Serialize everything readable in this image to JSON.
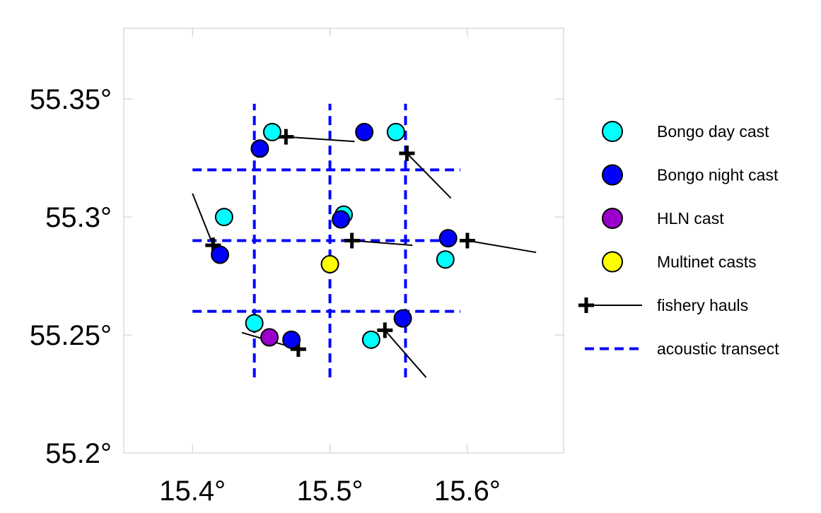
{
  "chart_data": {
    "type": "scatter",
    "title": "",
    "xlabel": "",
    "ylabel": "",
    "xlim": [
      15.35,
      15.67
    ],
    "ylim": [
      55.2,
      55.38
    ],
    "x_ticks": [
      {
        "value": 15.4,
        "label": "15.4°"
      },
      {
        "value": 15.5,
        "label": "15.5°"
      },
      {
        "value": 15.6,
        "label": "15.6°"
      }
    ],
    "y_ticks": [
      {
        "value": 55.2,
        "label": "55.2°"
      },
      {
        "value": 55.25,
        "label": "55.25°"
      },
      {
        "value": 55.3,
        "label": "55.3°"
      },
      {
        "value": 55.35,
        "label": "55.35°"
      }
    ],
    "grid": false,
    "legend_position": "right",
    "colors": {
      "bongo_day": "#00ffff",
      "bongo_night": "#0000ff",
      "hln": "#9900cc",
      "multinet": "#ffff00",
      "fishery": "#000000",
      "acoustic": "#0000ff"
    },
    "acoustic_transects": [
      {
        "x": [
          15.445,
          15.445
        ],
        "y": [
          55.232,
          55.348
        ]
      },
      {
        "x": [
          15.5,
          15.5
        ],
        "y": [
          55.232,
          55.348
        ]
      },
      {
        "x": [
          15.555,
          15.555
        ],
        "y": [
          55.232,
          55.348
        ]
      },
      {
        "x": [
          15.4,
          15.595
        ],
        "y": [
          55.32,
          55.32
        ]
      },
      {
        "x": [
          15.4,
          15.595
        ],
        "y": [
          55.29,
          55.29
        ]
      },
      {
        "x": [
          15.4,
          15.595
        ],
        "y": [
          55.26,
          55.26
        ]
      }
    ],
    "fishery_hauls": [
      {
        "start": [
          15.468,
          55.334
        ],
        "end": [
          15.518,
          55.332
        ]
      },
      {
        "start": [
          15.556,
          55.327
        ],
        "end": [
          15.588,
          55.308
        ]
      },
      {
        "start": [
          15.415,
          55.288
        ],
        "end": [
          15.4,
          55.31
        ]
      },
      {
        "start": [
          15.516,
          55.29
        ],
        "end": [
          15.56,
          55.288
        ]
      },
      {
        "start": [
          15.6,
          55.29
        ],
        "end": [
          15.65,
          55.285
        ]
      },
      {
        "start": [
          15.477,
          55.244
        ],
        "end": [
          15.436,
          55.251
        ]
      },
      {
        "start": [
          15.54,
          55.252
        ],
        "end": [
          15.57,
          55.232
        ]
      }
    ],
    "series": [
      {
        "name": "Bongo day cast",
        "color": "#00ffff",
        "points": [
          [
            15.458,
            55.336
          ],
          [
            15.548,
            55.336
          ],
          [
            15.423,
            55.3
          ],
          [
            15.51,
            55.301
          ],
          [
            15.584,
            55.282
          ],
          [
            15.445,
            55.255
          ],
          [
            15.53,
            55.248
          ]
        ]
      },
      {
        "name": "Bongo night cast",
        "color": "#0000ff",
        "points": [
          [
            15.449,
            55.329
          ],
          [
            15.525,
            55.336
          ],
          [
            15.42,
            55.284
          ],
          [
            15.508,
            55.299
          ],
          [
            15.586,
            55.291
          ],
          [
            15.472,
            55.248
          ],
          [
            15.553,
            55.257
          ]
        ]
      },
      {
        "name": "HLN cast",
        "color": "#9900cc",
        "points": [
          [
            15.456,
            55.249
          ]
        ]
      },
      {
        "name": "Multinet casts",
        "color": "#ffff00",
        "points": [
          [
            15.5,
            55.28
          ]
        ]
      }
    ],
    "legend": [
      {
        "label": "Bongo day cast",
        "symbol": "circle",
        "color": "#00ffff"
      },
      {
        "label": "Bongo night cast",
        "symbol": "circle",
        "color": "#0000ff"
      },
      {
        "label": "HLN cast",
        "symbol": "circle",
        "color": "#9900cc"
      },
      {
        "label": "Multinet casts",
        "symbol": "circle",
        "color": "#ffff00"
      },
      {
        "label": "fishery hauls",
        "symbol": "cross-line",
        "color": "#000000"
      },
      {
        "label": "acoustic transect",
        "symbol": "dashed-line",
        "color": "#0000ff"
      }
    ]
  }
}
